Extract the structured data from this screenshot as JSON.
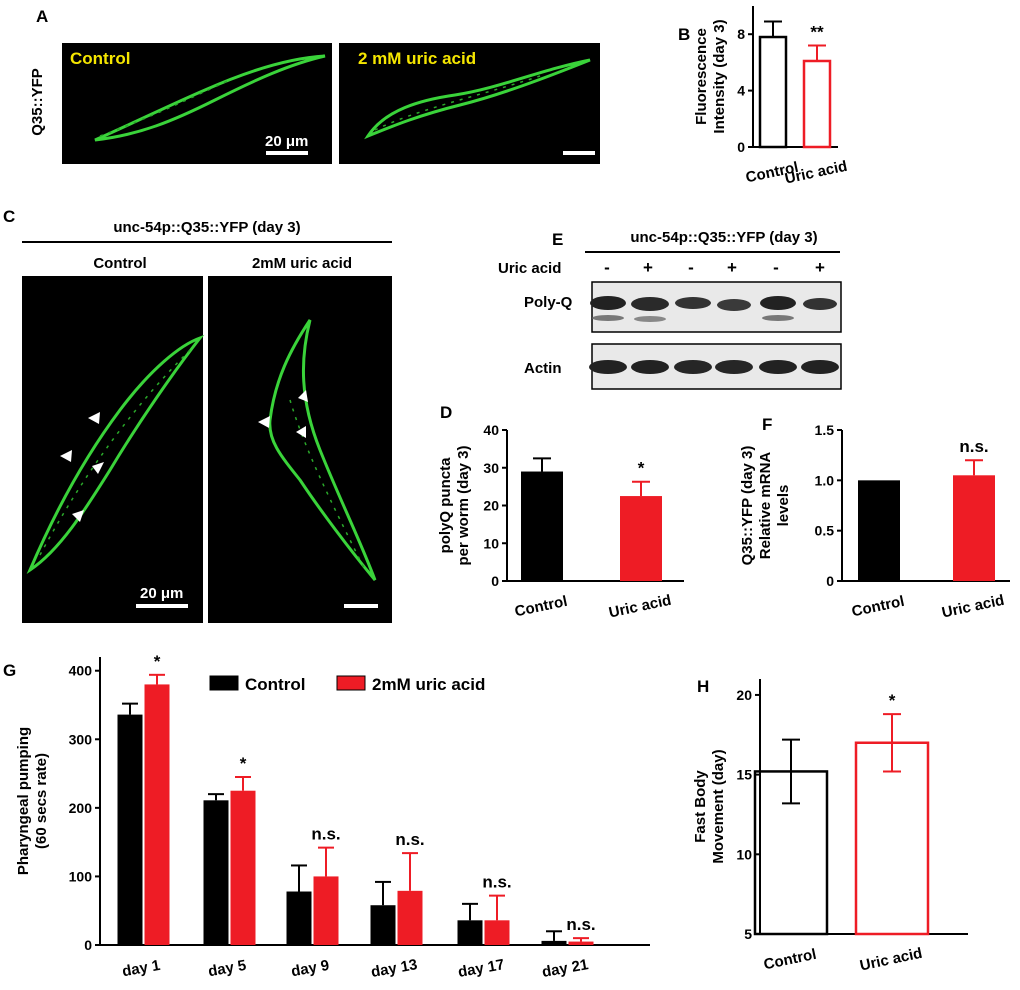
{
  "panel_labels": {
    "a": "A",
    "b": "B",
    "c": "C",
    "d": "D",
    "e": "E",
    "f": "F",
    "g": "G",
    "h": "H"
  },
  "panel_a": {
    "strain_label": "Q35::YFP",
    "control_label": "Control",
    "treatment_label": "2 mM uric acid",
    "scale_bar": "20 μm"
  },
  "panel_c": {
    "title": "unc-54p::Q35::YFP (day 3)",
    "control_label": "Control",
    "treatment_label": "2mM uric acid",
    "scale_bar": "20 μm"
  },
  "panel_e": {
    "title": "unc-54p::Q35::YFP (day 3)",
    "row_label": "Uric acid",
    "lanes": [
      "-",
      "+",
      "-",
      "+",
      "-",
      "+"
    ],
    "band1_label": "Poly-Q",
    "band2_label": "Actin"
  },
  "colors": {
    "black": "#000000",
    "red": "#ee1c25",
    "worm_green": "#3ad33a",
    "label_yellow": "#f5e600"
  },
  "chart_data": [
    {
      "id": "B",
      "type": "bar",
      "style": "open",
      "categories": [
        "Control",
        "Uric acid"
      ],
      "values": [
        7.8,
        6.1
      ],
      "errors": [
        1.1,
        1.1
      ],
      "colors": [
        "#000000",
        "#ee1c25"
      ],
      "ylabel": [
        "Fluorescence",
        "Intensity (day 3)"
      ],
      "ylim": [
        0,
        10
      ],
      "yticks": [
        0,
        4,
        8
      ],
      "annotations": [
        "",
        "**"
      ]
    },
    {
      "id": "D",
      "type": "bar",
      "style": "filled",
      "categories": [
        "Control",
        "Uric acid"
      ],
      "values": [
        29,
        22.5
      ],
      "errors": [
        3.5,
        3.8
      ],
      "colors": [
        "#000000",
        "#ee1c25"
      ],
      "ylabel": [
        "polyQ puncta",
        "per worm (day 3)"
      ],
      "ylim": [
        0,
        40
      ],
      "yticks": [
        0,
        10,
        20,
        30,
        40
      ],
      "annotations": [
        "",
        "*"
      ]
    },
    {
      "id": "F",
      "type": "bar",
      "style": "filled",
      "categories": [
        "Control",
        "Uric acid"
      ],
      "values": [
        1.0,
        1.05
      ],
      "errors": [
        0,
        0.15
      ],
      "colors": [
        "#000000",
        "#ee1c25"
      ],
      "ylabel": [
        "Q35::YFP (day 3)",
        "Relative mRNA",
        "levels"
      ],
      "ylim": [
        0,
        1.5
      ],
      "yticks": [
        0,
        0.5,
        1.0,
        1.5
      ],
      "tick_labels": [
        "0",
        "0.5",
        "1.0",
        "1.5"
      ],
      "annotations": [
        "",
        "n.s."
      ]
    },
    {
      "id": "G",
      "type": "bar",
      "style": "filled",
      "categories": [
        "day 1",
        "day 5",
        "day 9",
        "day 13",
        "day 17",
        "day 21"
      ],
      "series": [
        {
          "name": "Control",
          "color": "#000000",
          "values": [
            336,
            211,
            78,
            58,
            36,
            6
          ],
          "errors": [
            16,
            9,
            38,
            34,
            24,
            14
          ]
        },
        {
          "name": "2mM uric acid",
          "color": "#ee1c25",
          "values": [
            380,
            225,
            100,
            79,
            36,
            5
          ],
          "errors": [
            14,
            20,
            42,
            55,
            36,
            5
          ]
        }
      ],
      "ylabel": [
        "Pharyngeal pumping",
        "(60 secs rate)"
      ],
      "ylim": [
        0,
        420
      ],
      "yticks": [
        0,
        100,
        200,
        300,
        400
      ],
      "annotations": [
        "*",
        "*",
        "n.s.",
        "n.s.",
        "n.s.",
        "n.s."
      ]
    },
    {
      "id": "H",
      "type": "bar",
      "style": "open",
      "categories": [
        "Control",
        "Uric acid"
      ],
      "values": [
        15.2,
        17.0
      ],
      "errors": [
        2.0,
        1.8
      ],
      "colors": [
        "#000000",
        "#ee1c25"
      ],
      "ylabel": [
        "Fast Body",
        "Movement (day)"
      ],
      "ylim": [
        5,
        21
      ],
      "yticks": [
        5,
        10,
        15,
        20
      ],
      "annotations": [
        "",
        "*"
      ]
    }
  ]
}
